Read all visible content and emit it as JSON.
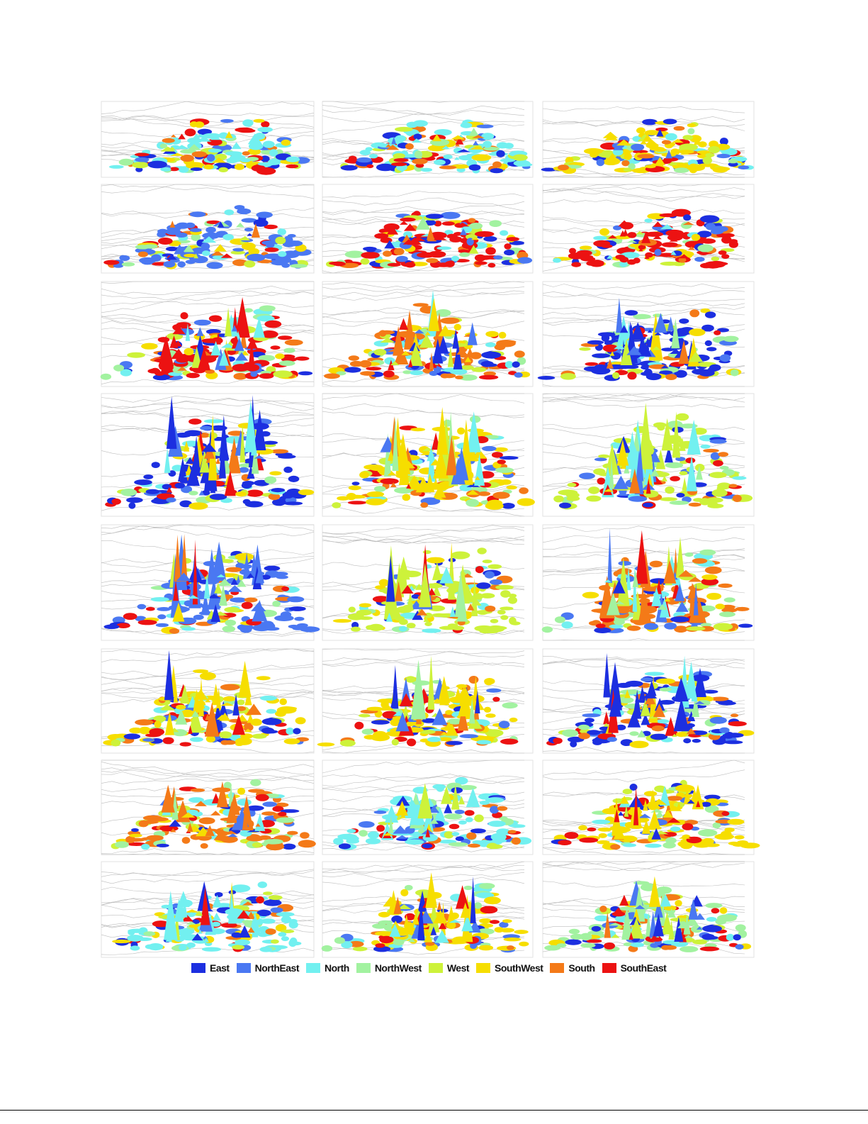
{
  "figure": {
    "legend": {
      "items": [
        {
          "label": "East",
          "color": "#1c2fe0"
        },
        {
          "label": "NorthEast",
          "color": "#4a78f2"
        },
        {
          "label": "North",
          "color": "#72f0f0"
        },
        {
          "label": "NorthWest",
          "color": "#a2f2a0"
        },
        {
          "label": "West",
          "color": "#cdf23a"
        },
        {
          "label": "SouthWest",
          "color": "#f6de00"
        },
        {
          "label": "South",
          "color": "#f47a18"
        },
        {
          "label": "SouthEast",
          "color": "#ec1212"
        }
      ]
    }
  }
}
